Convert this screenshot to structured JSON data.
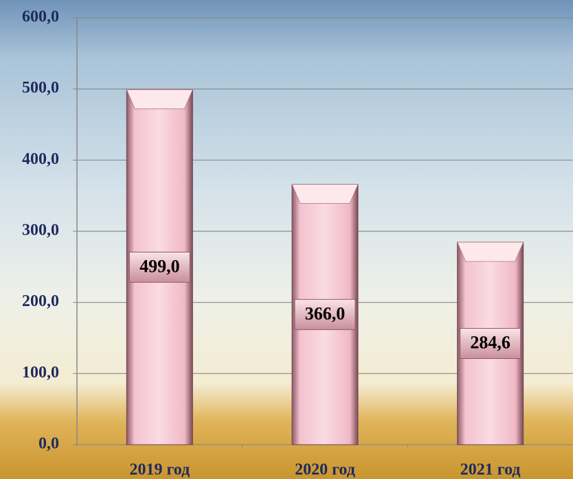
{
  "chart_data": {
    "type": "bar",
    "categories": [
      "2019 год",
      "2020 год",
      "2021 год"
    ],
    "values": [
      499.0,
      366.0,
      284.6
    ],
    "value_labels": [
      "499,0",
      "366,0",
      "284,6"
    ],
    "color": "#f2b8c6",
    "ylim": [
      0,
      600
    ],
    "yticks": [
      {
        "value": 0,
        "label": "0,0"
      },
      {
        "value": 100,
        "label": "100,0"
      },
      {
        "value": 200,
        "label": "200,0"
      },
      {
        "value": 300,
        "label": "300,0"
      },
      {
        "value": 400,
        "label": "400,0"
      },
      {
        "value": 500,
        "label": "500,0"
      },
      {
        "value": 600,
        "label": "600,0"
      }
    ],
    "grid": true
  }
}
